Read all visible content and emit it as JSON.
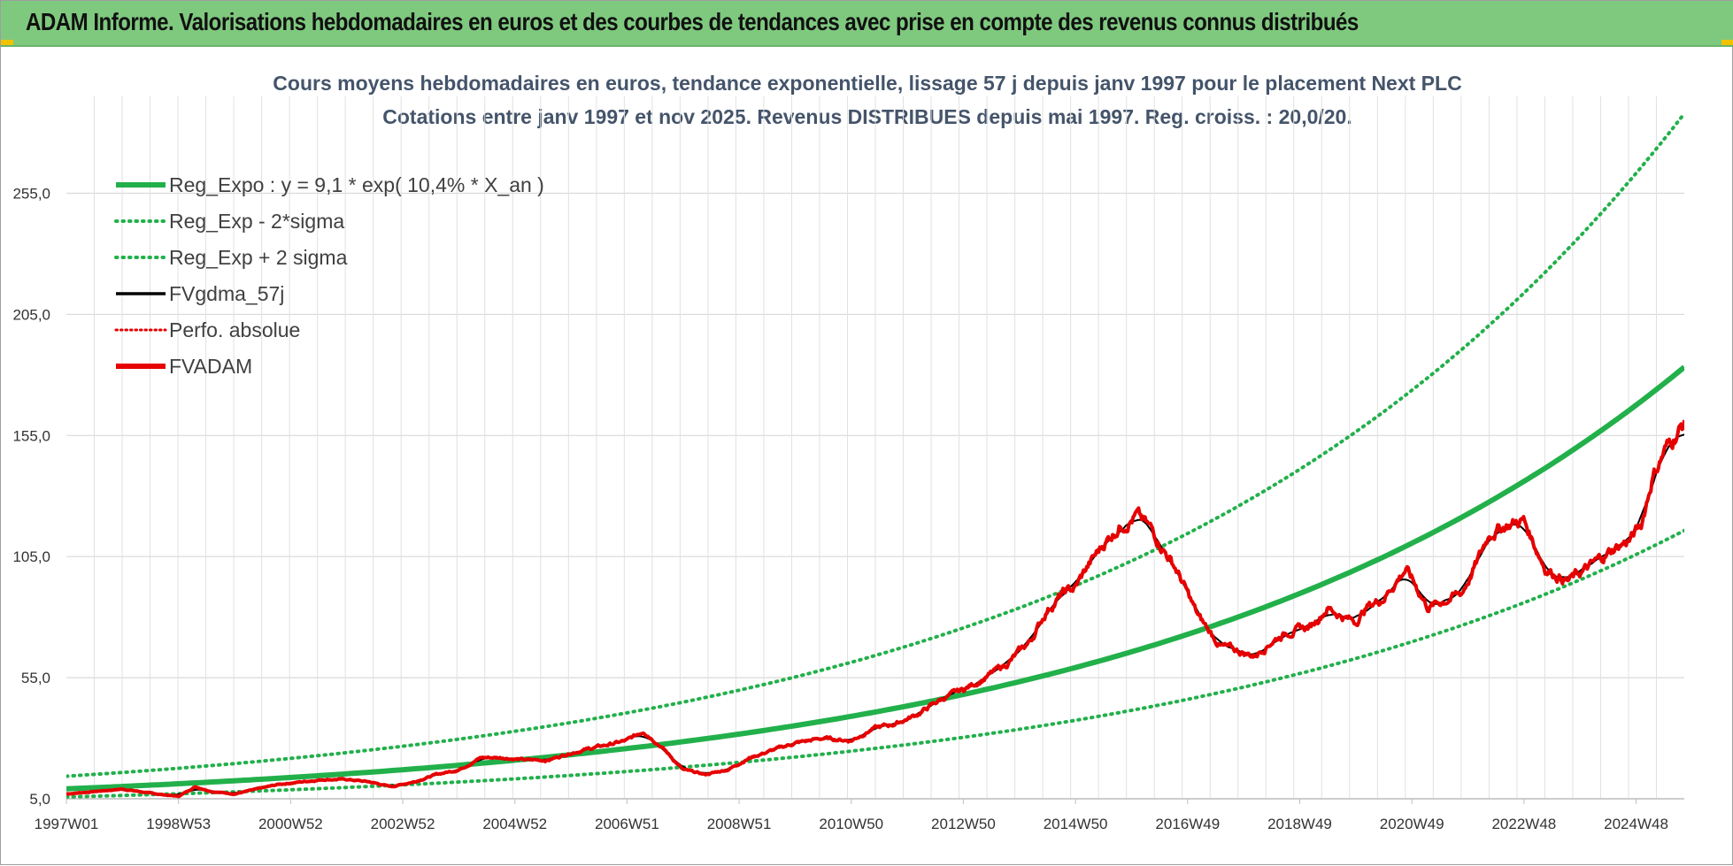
{
  "banner": {
    "title": "ADAM Informe. Valorisations hebdomadaires en euros et des courbes de tendances avec prise en compte des revenus connus distribués"
  },
  "chart_data": {
    "type": "line",
    "title": "Cours moyens hebdomadaires en euros, tendance exponentielle, lissage 57 j depuis janv 1997 pour le placement Next PLC",
    "subtitle": "Cotations entre janv 1997 et nov 2025. Revenus DISTRIBUES depuis mai 1997. Reg. croiss. : 20,0/20.",
    "xlabel": "",
    "ylabel": "",
    "x_tick_labels": [
      "1997W01",
      "1998W53",
      "2000W52",
      "2002W52",
      "2004W52",
      "2006W51",
      "2008W51",
      "2010W50",
      "2012W50",
      "2014W50",
      "2016W49",
      "2018W49",
      "2020W49",
      "2022W48",
      "2024W48"
    ],
    "x_range_years": [
      1997.0,
      2025.87
    ],
    "y_tick_labels": [
      "5,0",
      "55,0",
      "105,0",
      "155,0",
      "205,0",
      "255,0"
    ],
    "y_ticks": [
      5,
      55,
      105,
      155,
      205,
      255
    ],
    "ylim": [
      5,
      295
    ],
    "grid": true,
    "legend_position": "top-left",
    "series": [
      {
        "name": "Reg_Expo : y = 9,1 * exp( 10,4% *  X_an )",
        "style": "solid-thick",
        "color": "#22b04b",
        "a": 9.1,
        "rate": 0.104
      },
      {
        "name": "Reg_Exp - 2*sigma",
        "style": "dotted",
        "color": "#22b04b",
        "a": 5.75,
        "rate": 0.104
      },
      {
        "name": "Reg_Exp + 2 sigma",
        "style": "dotted",
        "color": "#22b04b",
        "a": 14.3,
        "rate": 0.104
      },
      {
        "name": "FVgdma_57j",
        "style": "solid",
        "color": "#000000"
      },
      {
        "name": "Perfo. absolue",
        "style": "dotted",
        "color": "#e60000"
      },
      {
        "name": "FVADAM",
        "style": "solid-thick",
        "color": "#e60000"
      }
    ],
    "price_points": {
      "x": [
        1997.0,
        1997.5,
        1998.0,
        1998.6,
        1999.0,
        1999.3,
        1999.6,
        2000.0,
        2000.4,
        2000.8,
        2001.2,
        2001.6,
        2002.0,
        2002.4,
        2002.8,
        2003.2,
        2003.6,
        2004.0,
        2004.4,
        2004.8,
        2005.2,
        2005.6,
        2006.0,
        2006.4,
        2006.8,
        2007.0,
        2007.3,
        2007.6,
        2008.0,
        2008.4,
        2008.8,
        2009.2,
        2009.6,
        2010.0,
        2010.5,
        2011.0,
        2011.4,
        2011.8,
        2012.2,
        2012.6,
        2013.0,
        2013.4,
        2013.8,
        2014.2,
        2014.5,
        2014.8,
        2015.0,
        2015.2,
        2015.5,
        2015.8,
        2016.1,
        2016.4,
        2016.8,
        2017.2,
        2017.6,
        2017.9,
        2018.2,
        2018.5,
        2018.8,
        2019.2,
        2019.5,
        2019.8,
        2020.0,
        2020.2,
        2020.5,
        2020.9,
        2021.3,
        2021.6,
        2021.9,
        2022.2,
        2022.4,
        2022.7,
        2023.0,
        2023.4,
        2023.8,
        2024.2,
        2024.6,
        2024.9,
        2025.1,
        2025.3,
        2025.5,
        2025.7,
        2025.87
      ],
      "y": [
        7,
        8,
        9,
        7,
        6,
        10,
        8,
        7,
        9,
        11,
        12,
        13,
        13,
        12,
        10,
        12,
        15,
        17,
        22,
        22,
        21,
        21,
        24,
        26,
        28,
        29,
        33,
        27,
        17,
        15,
        17,
        22,
        25,
        28,
        30,
        29,
        34,
        36,
        40,
        46,
        50,
        55,
        61,
        70,
        83,
        90,
        92,
        100,
        110,
        118,
        122,
        115,
        100,
        80,
        68,
        66,
        64,
        70,
        74,
        76,
        84,
        80,
        78,
        84,
        88,
        100,
        84,
        87,
        90,
        104,
        115,
        118,
        120,
        100,
        95,
        101,
        108,
        112,
        118,
        138,
        148,
        155,
        160
      ]
    }
  }
}
